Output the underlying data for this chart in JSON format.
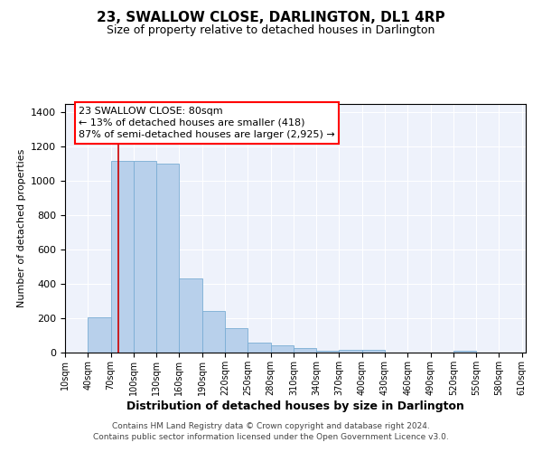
{
  "title": "23, SWALLOW CLOSE, DARLINGTON, DL1 4RP",
  "subtitle": "Size of property relative to detached houses in Darlington",
  "xlabel": "Distribution of detached houses by size in Darlington",
  "ylabel": "Number of detached properties",
  "bin_starts": [
    10,
    40,
    70,
    100,
    130,
    160,
    190,
    220,
    250,
    280,
    310,
    340,
    370,
    400,
    430,
    460,
    490,
    520,
    550,
    580
  ],
  "bin_width": 30,
  "values": [
    0,
    207,
    1120,
    1120,
    1100,
    430,
    240,
    145,
    58,
    42,
    25,
    12,
    15,
    15,
    0,
    0,
    0,
    12,
    0,
    0
  ],
  "bar_color": "#b8d0eb",
  "bar_edge_color": "#7aadd4",
  "vline_x": 80,
  "vline_color": "#cc0000",
  "vline_lw": 1.2,
  "annotation_text": "23 SWALLOW CLOSE: 80sqm\n← 13% of detached houses are smaller (418)\n87% of semi-detached houses are larger (2,925) →",
  "ylim": [
    0,
    1450
  ],
  "background_color": "#eef2fb",
  "grid_color": "#ffffff",
  "footer": "Contains HM Land Registry data © Crown copyright and database right 2024.\nContains public sector information licensed under the Open Government Licence v3.0.",
  "tick_labels": [
    "10sqm",
    "40sqm",
    "70sqm",
    "100sqm",
    "130sqm",
    "160sqm",
    "190sqm",
    "220sqm",
    "250sqm",
    "280sqm",
    "310sqm",
    "340sqm",
    "370sqm",
    "400sqm",
    "430sqm",
    "460sqm",
    "490sqm",
    "520sqm",
    "550sqm",
    "580sqm",
    "610sqm"
  ],
  "title_fontsize": 11,
  "subtitle_fontsize": 9,
  "ylabel_fontsize": 8,
  "xlabel_fontsize": 9,
  "tick_fontsize": 7,
  "ytick_fontsize": 8,
  "footer_fontsize": 6.5,
  "annotation_fontsize": 8
}
